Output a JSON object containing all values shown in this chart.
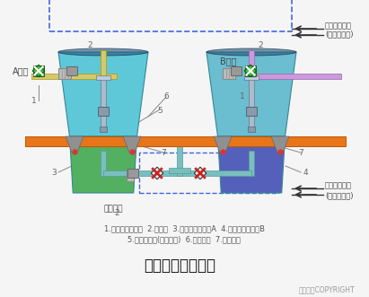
{
  "title": "荷重传感器的应用",
  "copyright": "东方仿真COPYRIGHT",
  "caption_line1": "1.电动比例调节阀  2.膨胀节  3.化学原料储液罐A  4.化学原料储液罐B",
  "caption_line2": "5.荷重传感器(每罐四只)  6.支撑结构  7.支撑平台",
  "label_A": "A液体",
  "label_B": "B液体",
  "label_signal_top1": "液面控制信号",
  "label_signal_top2": "(从计算机来)",
  "label_signal_bot1": "混合比例信号",
  "label_signal_bot2": "(从计算机来)",
  "label_reactor": "去反应塔",
  "bg_color": "#f5f5f5",
  "platform_color": "#E8751A",
  "platform_edge": "#C05500",
  "tank_A_top_color": "#5EC8D8",
  "tank_A_bot_color": "#52B060",
  "tank_B_top_color": "#6BBDD0",
  "tank_B_bot_color": "#5560BB",
  "pipe_A_color": "#D4C870",
  "pipe_B_color": "#CC99DD",
  "pipe_bot_color": "#7ABFBF",
  "dashed_color": "#4466DD",
  "support_color": "#AAAAAA",
  "leg_color": "#909090",
  "red_dot": "#DD3333",
  "valve_green": "#44BB44",
  "valve_red": "#CC2222",
  "text_color": "#666666",
  "title_color": "#111111",
  "arrow_color": "#333333",
  "bellows_color": "#BBBBBB",
  "col_color": "#9AABB8",
  "col_edge": "#667788"
}
